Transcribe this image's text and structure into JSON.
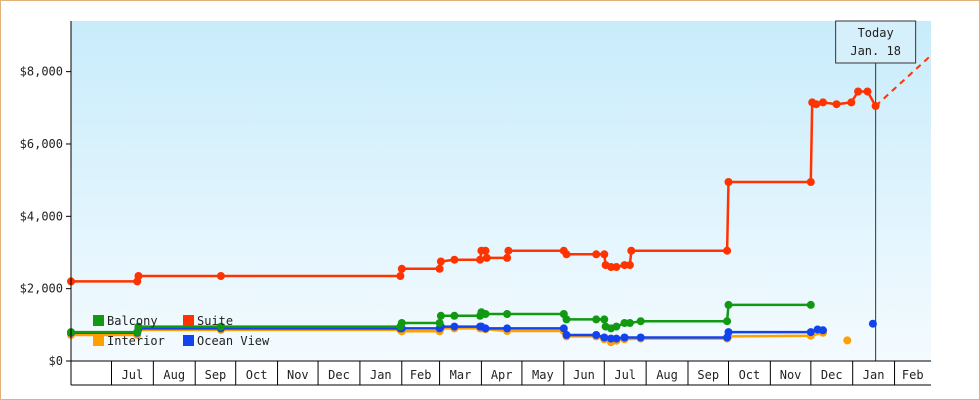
{
  "chart_data": {
    "type": "line",
    "title": "",
    "xlabel": "",
    "ylabel": "",
    "y_ticks": [
      "$0",
      "$2,000",
      "$4,000",
      "$6,000",
      "$8,000"
    ],
    "y_tick_values": [
      0,
      2000,
      4000,
      6000,
      8000
    ],
    "ylim": [
      0,
      9400
    ],
    "x_tick_labels": [
      "Jul",
      "Aug",
      "Sep",
      "Oct",
      "Nov",
      "Dec",
      "Jan",
      "Feb",
      "Mar",
      "Apr",
      "May",
      "Jun",
      "Jul",
      "Aug",
      "Sep",
      "Oct",
      "Nov",
      "Dec",
      "Jan",
      "Feb"
    ],
    "x_tick_months": [
      "2010-07",
      "2010-08",
      "2010-09",
      "2010-10",
      "2010-11",
      "2010-12",
      "2011-01",
      "2011-02",
      "2011-03",
      "2011-04",
      "2011-05",
      "2011-06",
      "2011-07",
      "2011-08",
      "2011-09",
      "2011-10",
      "2011-11",
      "2011-12",
      "2012-01",
      "2012-02"
    ],
    "xlim": [
      "2010-06-01",
      "2012-02-28"
    ],
    "today": {
      "line1": "Today",
      "line2": "Jan. 18",
      "date": "2012-01-18"
    },
    "grid": false,
    "legend_position": "bottom-left",
    "series": [
      {
        "name": "Suite",
        "color": "#ff3300",
        "points": [
          [
            "2010-06-01",
            2200
          ],
          [
            "2010-07-20",
            2200
          ],
          [
            "2010-07-21",
            2350
          ],
          [
            "2010-09-20",
            2350
          ],
          [
            "2011-01-31",
            2350
          ],
          [
            "2011-02-01",
            2550
          ],
          [
            "2011-03-01",
            2550
          ],
          [
            "2011-03-02",
            2750
          ],
          [
            "2011-03-12",
            2800
          ],
          [
            "2011-03-31",
            2800
          ],
          [
            "2011-04-01",
            3050
          ],
          [
            "2011-04-04",
            3050
          ],
          [
            "2011-04-05",
            2850
          ],
          [
            "2011-04-20",
            2850
          ],
          [
            "2011-04-21",
            3050
          ],
          [
            "2011-06-01",
            3050
          ],
          [
            "2011-06-03",
            2950
          ],
          [
            "2011-06-25",
            2950
          ],
          [
            "2011-07-01",
            2950
          ],
          [
            "2011-07-02",
            2650
          ],
          [
            "2011-07-06",
            2600
          ],
          [
            "2011-07-10",
            2600
          ],
          [
            "2011-07-16",
            2650
          ],
          [
            "2011-07-20",
            2650
          ],
          [
            "2011-07-21",
            3050
          ],
          [
            "2011-09-30",
            3050
          ],
          [
            "2011-10-01",
            4950
          ],
          [
            "2011-12-01",
            4950
          ],
          [
            "2011-12-02",
            7150
          ],
          [
            "2011-12-05",
            7100
          ],
          [
            "2011-12-10",
            7150
          ],
          [
            "2011-12-20",
            7100
          ],
          [
            "2011-12-31",
            7150
          ],
          [
            "2012-01-05",
            7450
          ],
          [
            "2012-01-12",
            7450
          ],
          [
            "2012-01-18",
            7050
          ]
        ],
        "projection": [
          [
            "2012-01-18",
            7050
          ],
          [
            "2012-02-28",
            8450
          ]
        ]
      },
      {
        "name": "Balcony",
        "color": "#119911",
        "points": [
          [
            "2010-06-01",
            800
          ],
          [
            "2010-07-20",
            800
          ],
          [
            "2010-07-21",
            950
          ],
          [
            "2010-09-20",
            950
          ],
          [
            "2011-01-31",
            950
          ],
          [
            "2011-02-01",
            1050
          ],
          [
            "2011-03-01",
            1050
          ],
          [
            "2011-03-02",
            1250
          ],
          [
            "2011-03-12",
            1250
          ],
          [
            "2011-03-31",
            1250
          ],
          [
            "2011-04-01",
            1350
          ],
          [
            "2011-04-04",
            1300
          ],
          [
            "2011-04-20",
            1300
          ],
          [
            "2011-06-01",
            1300
          ],
          [
            "2011-06-03",
            1150
          ],
          [
            "2011-06-25",
            1150
          ],
          [
            "2011-07-01",
            1150
          ],
          [
            "2011-07-02",
            950
          ],
          [
            "2011-07-06",
            900
          ],
          [
            "2011-07-10",
            950
          ],
          [
            "2011-07-16",
            1050
          ],
          [
            "2011-07-20",
            1050
          ],
          [
            "2011-07-28",
            1100
          ],
          [
            "2011-09-30",
            1100
          ],
          [
            "2011-10-01",
            1550
          ],
          [
            "2011-12-01",
            1550
          ]
        ]
      },
      {
        "name": "Interior",
        "color": "#ffa000",
        "points": [
          [
            "2010-06-01",
            720
          ],
          [
            "2010-07-20",
            720
          ],
          [
            "2010-07-21",
            860
          ],
          [
            "2010-09-20",
            860
          ],
          [
            "2011-01-31",
            860
          ],
          [
            "2011-02-01",
            820
          ],
          [
            "2011-03-01",
            820
          ],
          [
            "2011-03-02",
            900
          ],
          [
            "2011-03-12",
            900
          ],
          [
            "2011-03-31",
            900
          ],
          [
            "2011-04-01",
            900
          ],
          [
            "2011-04-04",
            880
          ],
          [
            "2011-04-20",
            830
          ],
          [
            "2011-06-01",
            830
          ],
          [
            "2011-06-03",
            680
          ],
          [
            "2011-06-25",
            680
          ],
          [
            "2011-07-01",
            600
          ],
          [
            "2011-07-06",
            520
          ],
          [
            "2011-07-10",
            560
          ],
          [
            "2011-07-16",
            600
          ],
          [
            "2011-07-28",
            620
          ],
          [
            "2011-09-30",
            620
          ],
          [
            "2011-10-01",
            680
          ],
          [
            "2011-12-01",
            700
          ],
          [
            "2011-12-10",
            780
          ]
        ],
        "extra_points": [
          [
            "2011-12-28",
            570
          ]
        ]
      },
      {
        "name": "Ocean View",
        "color": "#1144ee",
        "points": [
          [
            "2010-06-01",
            780
          ],
          [
            "2010-07-20",
            780
          ],
          [
            "2010-07-21",
            900
          ],
          [
            "2010-09-20",
            900
          ],
          [
            "2011-01-31",
            900
          ],
          [
            "2011-02-01",
            900
          ],
          [
            "2011-03-01",
            900
          ],
          [
            "2011-03-02",
            950
          ],
          [
            "2011-03-12",
            950
          ],
          [
            "2011-03-31",
            950
          ],
          [
            "2011-04-01",
            950
          ],
          [
            "2011-04-04",
            900
          ],
          [
            "2011-04-20",
            900
          ],
          [
            "2011-06-01",
            900
          ],
          [
            "2011-06-03",
            720
          ],
          [
            "2011-06-25",
            720
          ],
          [
            "2011-07-01",
            650
          ],
          [
            "2011-07-06",
            620
          ],
          [
            "2011-07-10",
            620
          ],
          [
            "2011-07-16",
            650
          ],
          [
            "2011-07-28",
            650
          ],
          [
            "2011-09-30",
            650
          ],
          [
            "2011-10-01",
            800
          ],
          [
            "2011-12-01",
            800
          ],
          [
            "2011-12-06",
            870
          ],
          [
            "2011-12-10",
            850
          ]
        ],
        "extra_points": [
          [
            "2012-01-16",
            1030
          ]
        ]
      }
    ],
    "legend": [
      {
        "name": "Balcony",
        "color": "#119911"
      },
      {
        "name": "Suite",
        "color": "#ff3300"
      },
      {
        "name": "Interior",
        "color": "#ffa000"
      },
      {
        "name": "Ocean View",
        "color": "#1144ee"
      }
    ]
  }
}
